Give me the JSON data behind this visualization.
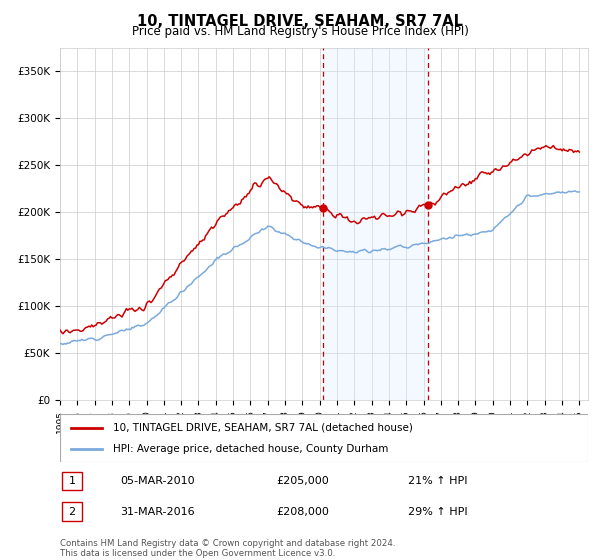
{
  "title": "10, TINTAGEL DRIVE, SEAHAM, SR7 7AL",
  "subtitle": "Price paid vs. HM Land Registry's House Price Index (HPI)",
  "legend_line1": "10, TINTAGEL DRIVE, SEAHAM, SR7 7AL (detached house)",
  "legend_line2": "HPI: Average price, detached house, County Durham",
  "annotation1_label": "1",
  "annotation1_date": "05-MAR-2010",
  "annotation1_price": "£205,000",
  "annotation1_hpi": "21% ↑ HPI",
  "annotation2_label": "2",
  "annotation2_date": "31-MAR-2016",
  "annotation2_price": "£208,000",
  "annotation2_hpi": "29% ↑ HPI",
  "footnote_line1": "Contains HM Land Registry data © Crown copyright and database right 2024.",
  "footnote_line2": "This data is licensed under the Open Government Licence v3.0.",
  "ylim": [
    0,
    375000
  ],
  "yticks": [
    0,
    50000,
    100000,
    150000,
    200000,
    250000,
    300000,
    350000
  ],
  "ytick_labels": [
    "£0",
    "£50K",
    "£100K",
    "£150K",
    "£200K",
    "£250K",
    "£300K",
    "£350K"
  ],
  "xlim_start": 1995,
  "xlim_end": 2025.5,
  "red_color": "#cc0000",
  "blue_color": "#7aaadd",
  "shade_color": "#ddeeff",
  "grid_color": "#cccccc",
  "purchase1_x": 2010.17,
  "purchase1_y": 205000,
  "purchase2_x": 2016.25,
  "purchase2_y": 208000
}
